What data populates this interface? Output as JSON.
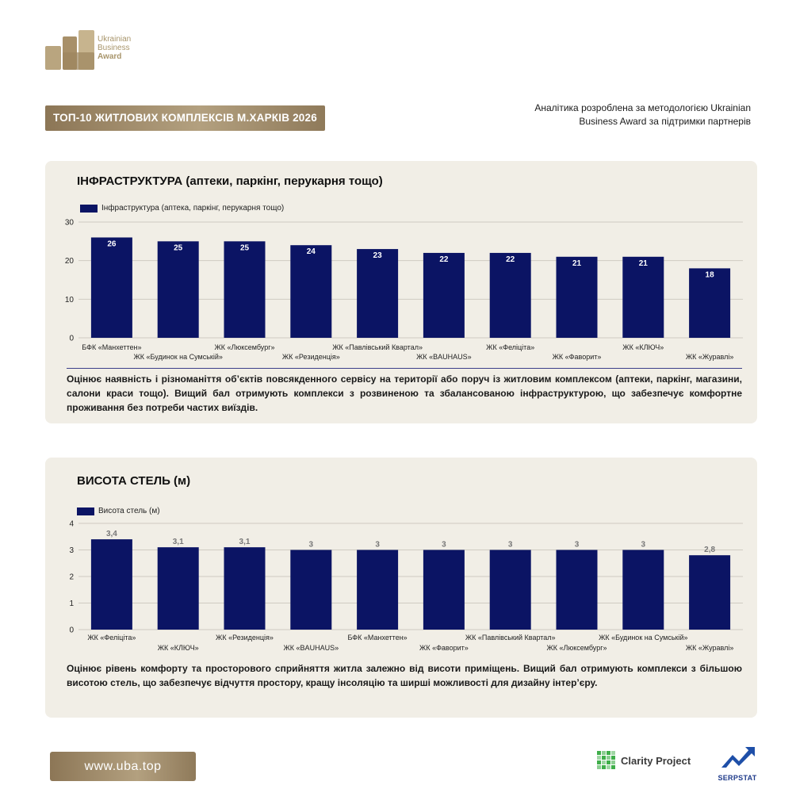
{
  "logo": {
    "line1": "Ukrainian",
    "line2": "Business",
    "line3": "Award"
  },
  "header": {
    "title": "ТОП-10 ЖИТЛОВИХ КОМПЛЕКСІВ М.ХАРКІВ 2026",
    "note": "Аналітика розроблена за методологією Ukrainian Business Award за підтримки партнерів"
  },
  "section1": {
    "title": "ІНФРАСТРУКТУРА (аптеки, паркінг, перукарня тощо)",
    "description": "Оцінює наявність і різноманіття об’єктів повсякденного сервісу на території або поруч із житловим комплексом (аптеки, паркінг, магазини, салони краси тощо). Вищий бал отримують комплекси з розвиненою та збалансованою інфраструктурою, що забезпечує комфортне проживання без потреби частих виїздів."
  },
  "section2": {
    "title": "ВИСОТА СТЕЛЬ (м)",
    "description": "Оцінює рівень комфорту та просторового сприйняття житла залежно від висоти приміщень. Вищий бал отримують комплекси з більшою висотою стель, що забезпечує відчуття простору, кращу інсоляцію та ширші можливості для дизайну інтер’єру."
  },
  "chart_data": [
    {
      "type": "bar",
      "series": [
        {
          "name": "Інфраструктура (аптека, паркінг, перукарня тощо)",
          "values": [
            26,
            25,
            25,
            24,
            23,
            22,
            22,
            21,
            21,
            18
          ],
          "labels": [
            "26",
            "25",
            "25",
            "24",
            "23",
            "22",
            "22",
            "21",
            "21",
            "18"
          ]
        }
      ],
      "categories": [
        "БФК «Манхеттен»",
        "ЖК «Будинок на Сумській»",
        "ЖК «Люксембург»",
        "ЖК «Резиденція»",
        "ЖК «Павлівський Квартал»",
        "ЖК «BAUHAUS»",
        "ЖК «Феліціта»",
        "ЖК «Фаворит»",
        "ЖК «КЛЮЧ»",
        "ЖК «Журавлі»"
      ],
      "yticks": [
        "0",
        "10",
        "20",
        "30"
      ],
      "ylim": [
        0,
        30
      ],
      "grid": true,
      "color": "#0b1464",
      "label_position": "inside-top"
    },
    {
      "type": "bar",
      "series": [
        {
          "name": "Висота стель (м)",
          "values": [
            3.4,
            3.1,
            3.1,
            3,
            3,
            3,
            3,
            3,
            3,
            2.8
          ],
          "labels": [
            "3,4",
            "3,1",
            "3,1",
            "3",
            "3",
            "3",
            "3",
            "3",
            "3",
            "2,8"
          ]
        }
      ],
      "categories": [
        "ЖК «Феліціта»",
        "ЖК «КЛЮЧ»",
        "ЖК «Резиденція»",
        "ЖК «BAUHAUS»",
        "БФК «Манхеттен»",
        "ЖК «Фаворит»",
        "ЖК «Павлівський Квартал»",
        "ЖК «Люксембург»",
        "ЖК «Будинок на Сумській»",
        "ЖК «Журавлі»"
      ],
      "yticks": [
        "0",
        "1",
        "2",
        "3",
        "4"
      ],
      "ylim": [
        0,
        4
      ],
      "grid": true,
      "color": "#0b1464",
      "label_position": "above"
    }
  ],
  "footer": {
    "site": "www.uba.top",
    "partner1": "Clarity Project",
    "partner2": "SERPSTAT"
  }
}
